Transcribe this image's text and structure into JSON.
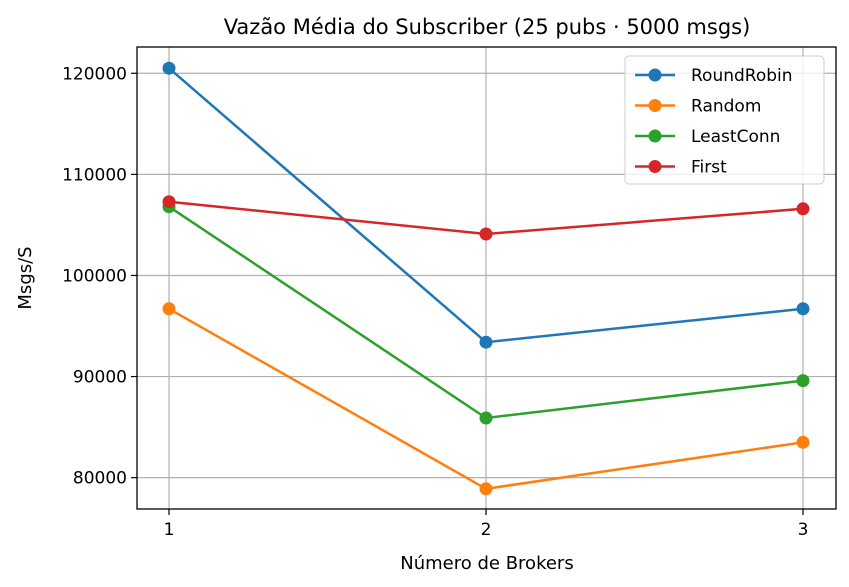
{
  "chart_data": {
    "type": "line",
    "title": "Vazão Média do Subscriber (25 pubs · 5000 msgs)",
    "xlabel": "Número de Brokers",
    "ylabel": "Msgs/S",
    "x": [
      1,
      2,
      3
    ],
    "x_ticks": [
      "1",
      "2",
      "3"
    ],
    "y_ticks": [
      "80000",
      "90000",
      "100000",
      "110000",
      "120000"
    ],
    "ylim": [
      76900,
      122600
    ],
    "grid": true,
    "legend_position": "upper-right",
    "series": [
      {
        "name": "RoundRobin",
        "color": "#1f77b4",
        "values": [
          120500,
          93400,
          96700
        ]
      },
      {
        "name": "Random",
        "color": "#ff7f0e",
        "values": [
          96700,
          78900,
          83500
        ]
      },
      {
        "name": "LeastConn",
        "color": "#2ca02c",
        "values": [
          106800,
          85900,
          89600
        ]
      },
      {
        "name": "First",
        "color": "#d62728",
        "values": [
          107300,
          104100,
          106600
        ]
      }
    ]
  }
}
